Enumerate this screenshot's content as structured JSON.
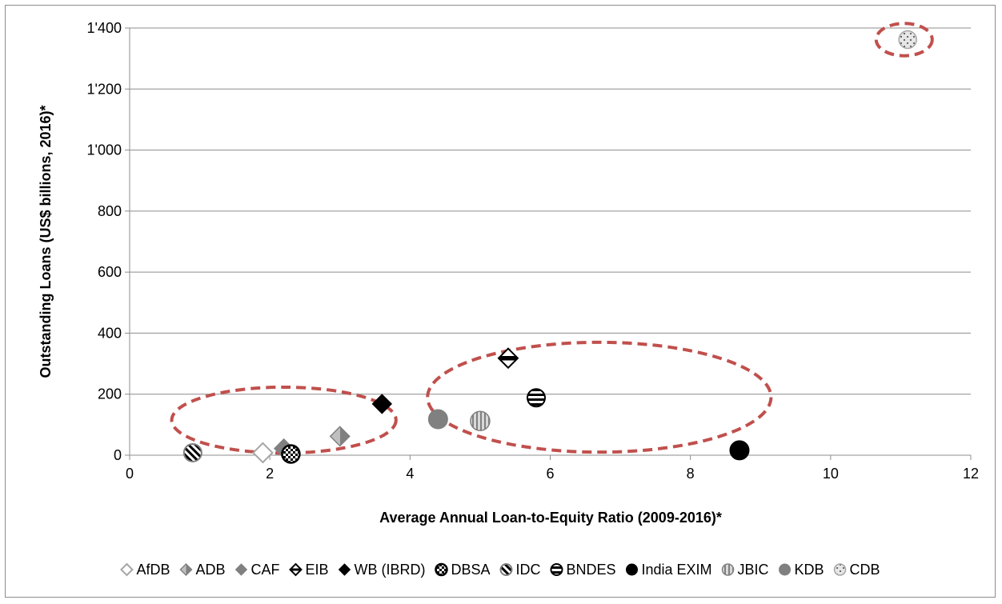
{
  "chart_data": {
    "type": "scatter",
    "title": "",
    "xlabel": "Average Annual Loan-to-Equity Ratio (2009-2016)*",
    "ylabel": "Outstanding Loans (US$ billions, 2016)*",
    "xlim": [
      0,
      12
    ],
    "ylim": [
      0,
      1400
    ],
    "xticks": [
      0,
      2,
      4,
      6,
      8,
      10,
      12
    ],
    "yticks": [
      0,
      200,
      400,
      600,
      800,
      1000,
      1200,
      1400
    ],
    "ytick_labels": [
      "0",
      "200",
      "400",
      "600",
      "800",
      "1'000",
      "1'200",
      "1'400"
    ],
    "grid": "horizontal",
    "legend_position": "bottom",
    "series": [
      {
        "name": "AfDB",
        "marker": "diamond-open-grey",
        "x": 1.9,
        "y": 8
      },
      {
        "name": "ADB",
        "marker": "diamond-half-grey",
        "x": 3.0,
        "y": 62
      },
      {
        "name": "CAF",
        "marker": "diamond-grey",
        "x": 2.2,
        "y": 22
      },
      {
        "name": "EIB",
        "marker": "diamond-half-black",
        "x": 5.4,
        "y": 318
      },
      {
        "name": "WB (IBRD)",
        "marker": "diamond-black",
        "x": 3.6,
        "y": 168
      },
      {
        "name": "DBSA",
        "marker": "circle-dotted-black",
        "x": 2.3,
        "y": 4
      },
      {
        "name": "IDC",
        "marker": "circle-diagonal",
        "x": 0.9,
        "y": 8
      },
      {
        "name": "BNDES",
        "marker": "circle-horizontal",
        "x": 5.8,
        "y": 188
      },
      {
        "name": "India EXIM",
        "marker": "circle-black",
        "x": 8.7,
        "y": 16
      },
      {
        "name": "JBIC",
        "marker": "circle-vertical",
        "x": 5.0,
        "y": 112
      },
      {
        "name": "KDB",
        "marker": "circle-grey",
        "x": 4.4,
        "y": 118
      },
      {
        "name": "CDB",
        "marker": "circle-speckled",
        "x": 11.1,
        "y": 1362
      }
    ],
    "annotations": [
      {
        "shape": "dashed-ellipse",
        "color": "#c0504d",
        "cx": 2.2,
        "cy": 115,
        "rx": 1.6,
        "ry": 108
      },
      {
        "shape": "dashed-ellipse",
        "color": "#c0504d",
        "cx": 6.7,
        "cy": 190,
        "rx": 2.45,
        "ry": 180
      },
      {
        "shape": "dashed-ellipse",
        "color": "#c0504d",
        "cx": 11.05,
        "cy": 1362,
        "rx": 0.4,
        "ry": 53
      }
    ],
    "colors": {
      "grid": "#8c8c8c",
      "axis": "#8c8c8c",
      "annotation": "#c0504d",
      "black": "#000000",
      "grey": "#808080",
      "light_grey": "#bfbfbf"
    }
  }
}
